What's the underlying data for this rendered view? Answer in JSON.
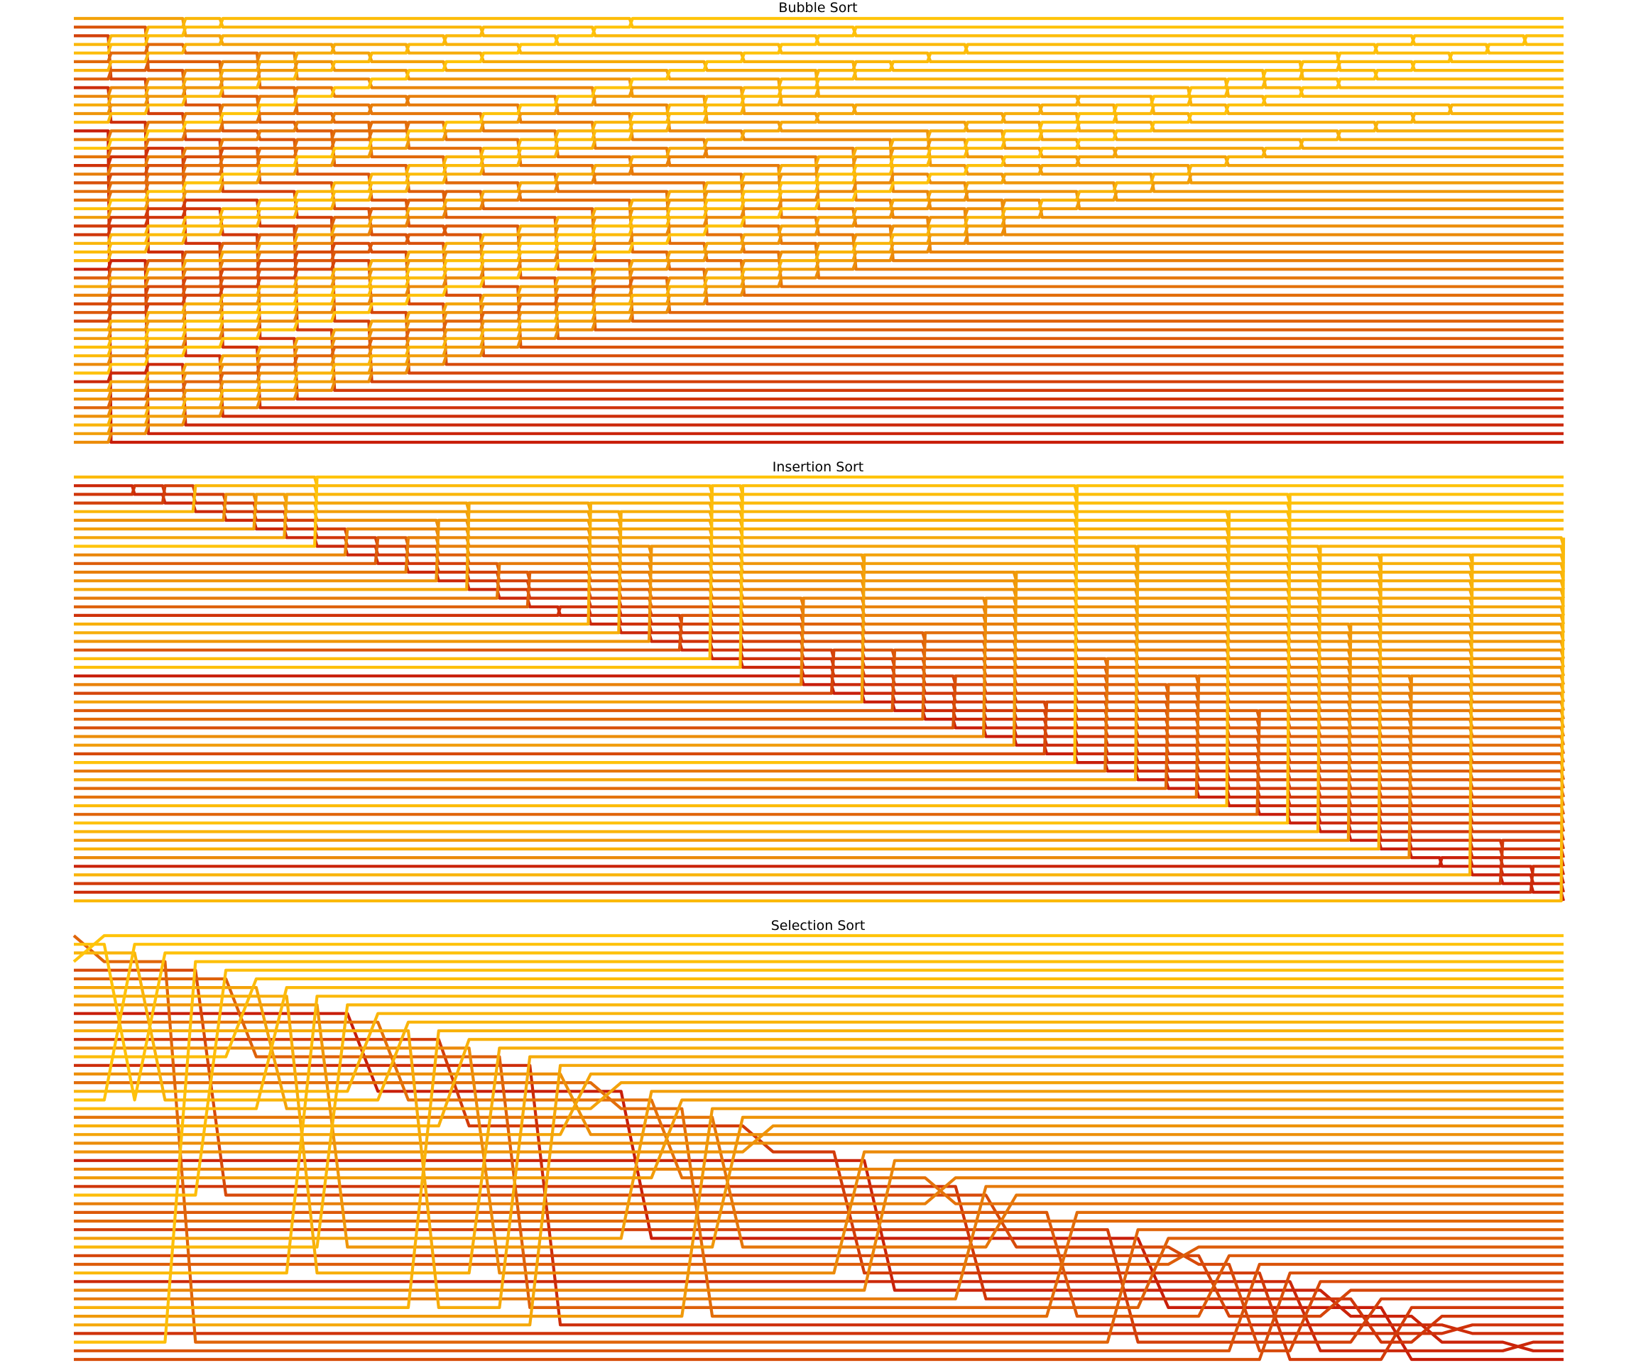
{
  "chart_data": [
    {
      "type": "line",
      "title": "Bubble Sort",
      "algorithm": "bubble",
      "n_elements": 50,
      "sorted_order": "descending",
      "axes_visible": false,
      "grid": false,
      "legend": "none",
      "colormap": [
        "#c81e0a",
        "#dc5a0a",
        "#ec8c0a",
        "#f8b00a",
        "#ffc40a"
      ]
    },
    {
      "type": "line",
      "title": "Insertion Sort",
      "algorithm": "insertion",
      "n_elements": 50,
      "sorted_order": "descending",
      "axes_visible": false,
      "grid": false,
      "legend": "none",
      "colormap": [
        "#c81e0a",
        "#dc5a0a",
        "#ec8c0a",
        "#f8b00a",
        "#ffc40a"
      ]
    },
    {
      "type": "line",
      "title": "Selection Sort",
      "algorithm": "selection",
      "n_elements": 50,
      "sorted_order": "descending",
      "axes_visible": false,
      "grid": false,
      "legend": "none",
      "colormap": [
        "#c81e0a",
        "#dc5a0a",
        "#ec8c0a",
        "#f8b00a",
        "#ffc40a"
      ]
    }
  ]
}
